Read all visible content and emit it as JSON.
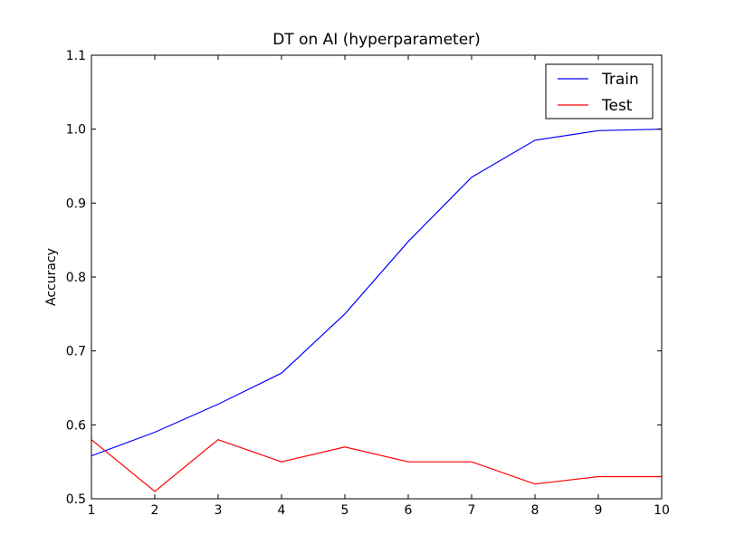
{
  "chart_data": {
    "type": "line",
    "title": "DT on AI (hyperparameter)",
    "xlabel": "",
    "ylabel": "Accuracy",
    "xlim": [
      1,
      10
    ],
    "ylim": [
      0.5,
      1.1
    ],
    "grid": false,
    "legend_position": "top-right",
    "x": [
      1,
      2,
      3,
      4,
      5,
      6,
      7,
      8,
      9,
      10
    ],
    "x_ticks": [
      "1",
      "2",
      "3",
      "4",
      "5",
      "6",
      "7",
      "8",
      "9",
      "10"
    ],
    "y_ticks": [
      "0.5",
      "0.6",
      "0.7",
      "0.8",
      "0.9",
      "1.0",
      "1.1"
    ],
    "series": [
      {
        "name": "Train",
        "color": "#0000ff",
        "values": [
          0.558,
          0.59,
          0.628,
          0.67,
          0.75,
          0.848,
          0.935,
          0.985,
          0.998,
          1.0
        ]
      },
      {
        "name": "Test",
        "color": "#ff0000",
        "values": [
          0.58,
          0.51,
          0.58,
          0.55,
          0.57,
          0.55,
          0.55,
          0.52,
          0.53,
          0.53
        ]
      }
    ]
  }
}
